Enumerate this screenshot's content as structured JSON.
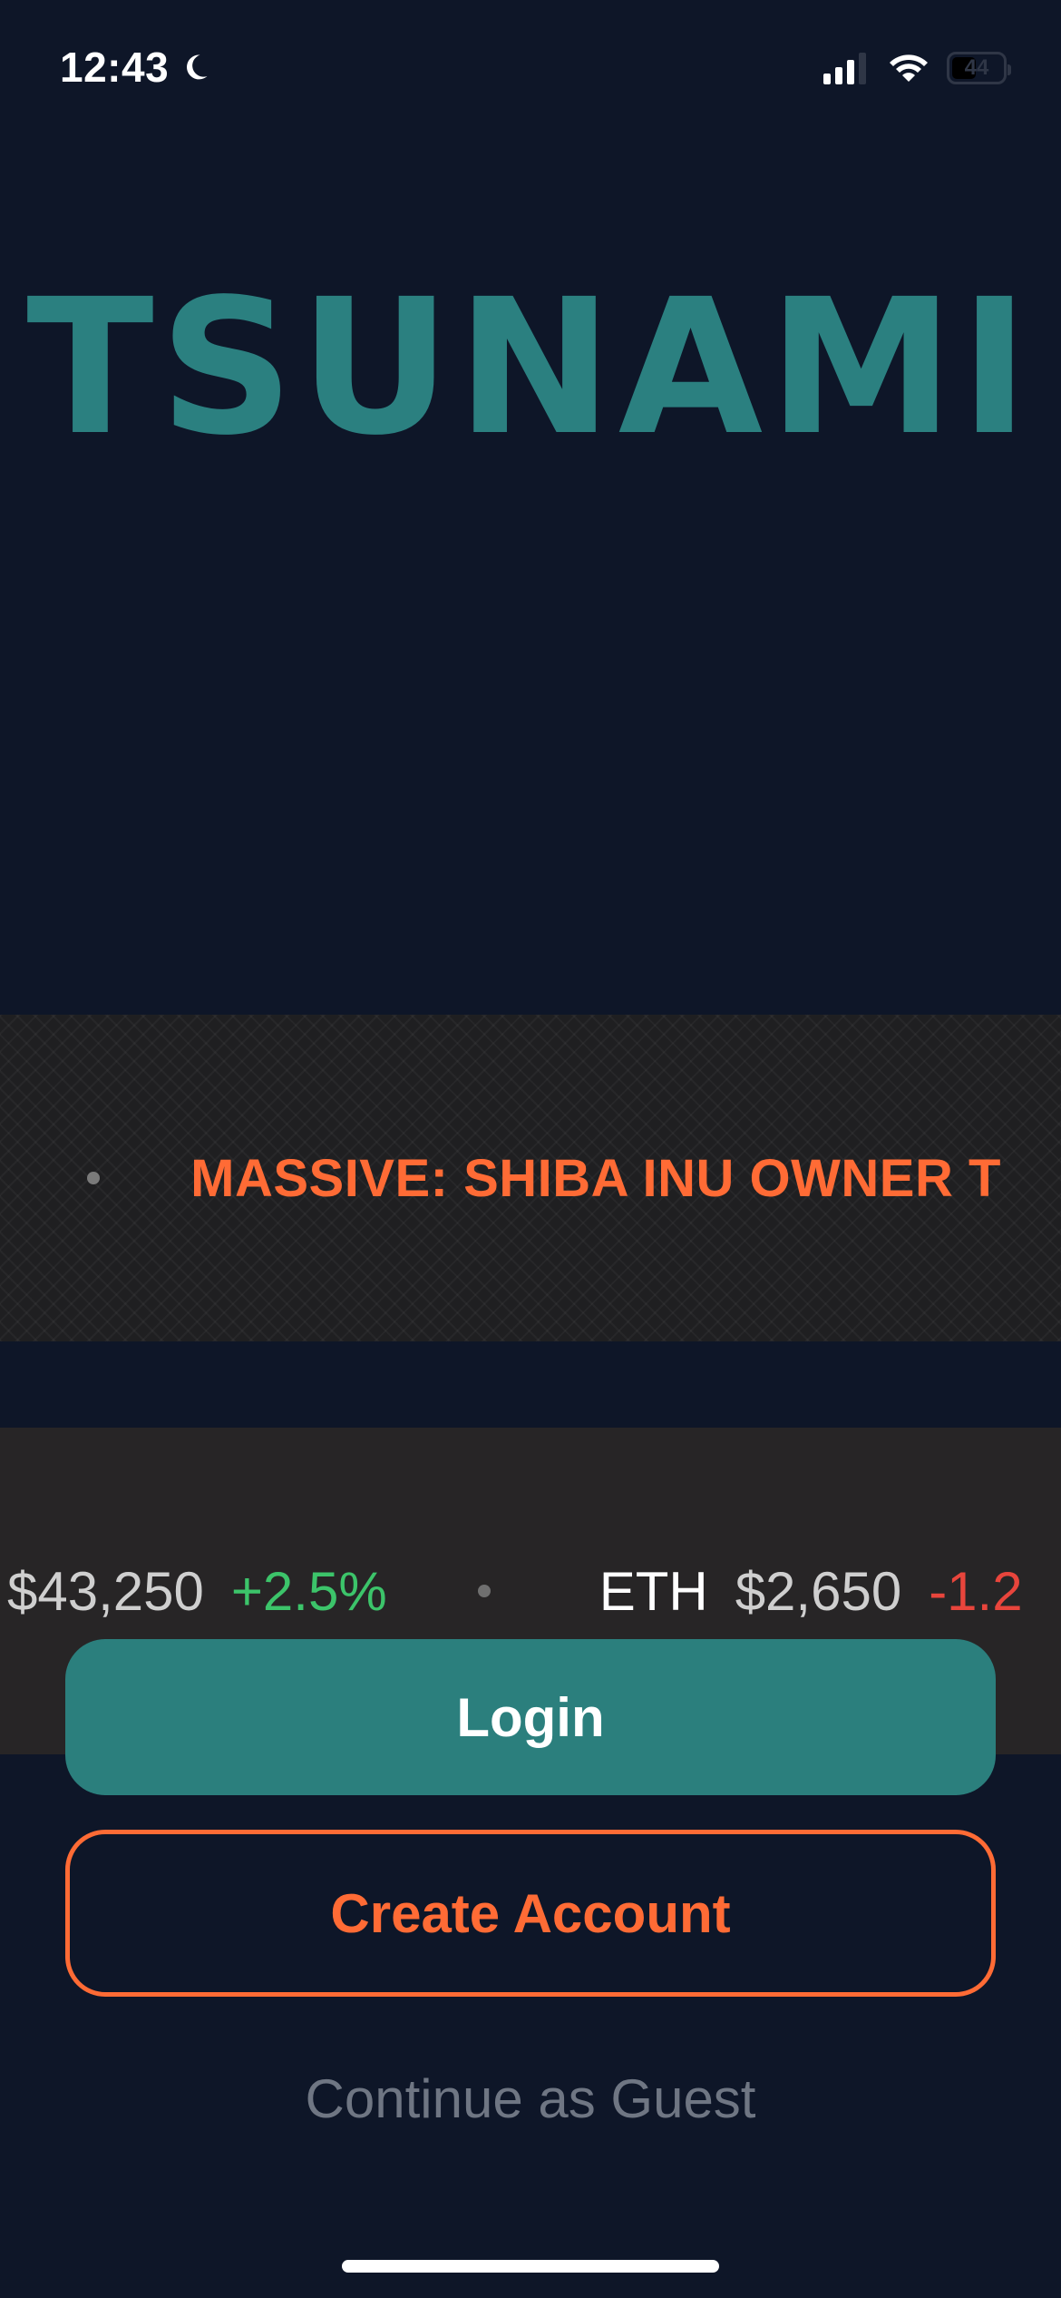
{
  "status_bar": {
    "time": "12:43",
    "battery": "44",
    "icons": [
      "moon-icon",
      "cellular-signal-icon",
      "wifi-icon",
      "battery-icon"
    ]
  },
  "logo": {
    "text": "TSUNAMI",
    "color": "#2b8080"
  },
  "news_ticker": {
    "fragment_before": ".",
    "headline": "MASSIVE: SHIBA INU OWNER T",
    "color": "#ff6b35"
  },
  "price_ticker": {
    "items": [
      {
        "symbol": "",
        "price": "$43,250",
        "change": "+2.5%"
      },
      {
        "symbol": "ETH",
        "price": "$2,650",
        "change": "-1.2"
      }
    ]
  },
  "buttons": {
    "login": "Login",
    "create_account": "Create Account",
    "guest": "Continue as Guest"
  },
  "colors": {
    "background": "#0e1628",
    "accent_teal": "#2b7f7d",
    "accent_orange": "#ff6b35",
    "positive": "#3cc46a",
    "negative": "#e8453c"
  }
}
